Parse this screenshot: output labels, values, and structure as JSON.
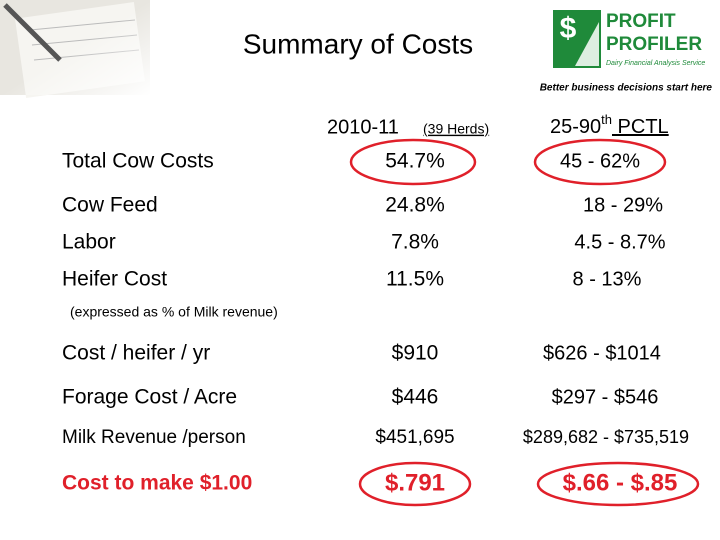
{
  "header": {
    "title": "Summary of Costs",
    "logo_line1": "PROFIT",
    "logo_line2": "PROFILER",
    "logo_sub": "Dairy Financial Analysis Service",
    "logo_symbol": "$",
    "tagline": "Better business decisions start here"
  },
  "table": {
    "col_year": "2010-11",
    "col_herds": "(39 Herds)",
    "col_pct_a": "25-90",
    "col_pct_sup": "th",
    "col_pct_b": " PCTL",
    "rows": [
      {
        "label": "Total Cow Costs",
        "value": "54.7%",
        "range": "45 - 62%"
      },
      {
        "label": "Cow Feed",
        "value": "24.8%",
        "range": "18 - 29%"
      },
      {
        "label": "Labor",
        "value": "7.8%",
        "range": "4.5 - 8.7%"
      },
      {
        "label": "Heifer Cost",
        "value": "11.5%",
        "range": "8 - 13%"
      },
      {
        "label": "Cost / heifer / yr",
        "value": "$910",
        "range": "$626 - $1014"
      },
      {
        "label": "Forage Cost / Acre",
        "value": "$446",
        "range": "$297 - $546"
      },
      {
        "label": "Milk Revenue /person",
        "value": "$451,695",
        "range": "$289,682 - $735,519"
      },
      {
        "label": "Cost to make $1.00",
        "value": "$.791",
        "range": "$.66 - $.85"
      }
    ],
    "note": "(expressed as % of Milk revenue)"
  }
}
